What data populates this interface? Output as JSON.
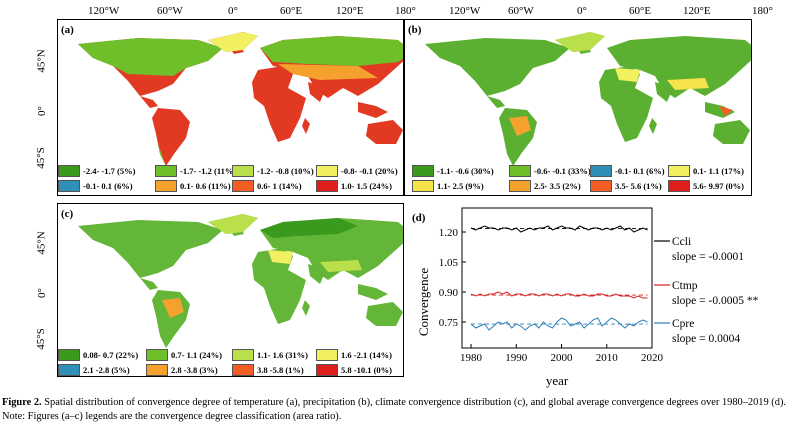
{
  "top_axis": {
    "labels": [
      "120°W",
      "60°W",
      "0°",
      "60°E",
      "120°E",
      "180°",
      "120°W",
      "60°W",
      "0°",
      "60°E",
      "120°E",
      "180°"
    ]
  },
  "lat_labels": [
    "45°N",
    "0°",
    "45°S"
  ],
  "panel_a": {
    "label": "(a)",
    "legend": [
      {
        "text": "-2.4- -1.7 (5%)",
        "color": "#3a9a1e"
      },
      {
        "text": "-1.7- -1.2 (11%)",
        "color": "#6fbf2a"
      },
      {
        "text": "-1.2- -0.8 (10%)",
        "color": "#b9df4a"
      },
      {
        "text": "-0.8- -0.1 (20%)",
        "color": "#f0f060"
      },
      {
        "text": "-0.1- 0.1 (6%)",
        "color": "#2f8fb6"
      },
      {
        "text": "0.1- 0.6 (11%)",
        "color": "#f4a22d"
      },
      {
        "text": "0.6- 1 (14%)",
        "color": "#f25e25"
      },
      {
        "text": "1.0- 1.5 (24%)",
        "color": "#e01e1e"
      }
    ]
  },
  "panel_b": {
    "label": "(b)",
    "legend": [
      {
        "text": "-1.1- -0.6 (30%)",
        "color": "#3a9a1e"
      },
      {
        "text": "-0.6- -0.1 (33%)",
        "color": "#6fbf2a"
      },
      {
        "text": "-0.1- 0.1 (6%)",
        "color": "#2f8fb6"
      },
      {
        "text": "0.1- 1.1 (17%)",
        "color": "#f0f060"
      },
      {
        "text": "1.1- 2.5 (9%)",
        "color": "#f6e24a"
      },
      {
        "text": "2.5- 3.5 (2%)",
        "color": "#f4a22d"
      },
      {
        "text": "3.5- 5.6 (1%)",
        "color": "#f25e25"
      },
      {
        "text": "5.6- 9.97 (0%)",
        "color": "#e01e1e"
      }
    ]
  },
  "panel_c": {
    "label": "(c)",
    "legend": [
      {
        "text": "0.08- 0.7 (22%)",
        "color": "#3a9a1e"
      },
      {
        "text": "0.7- 1.1 (24%)",
        "color": "#6fbf2a"
      },
      {
        "text": "1.1- 1.6 (31%)",
        "color": "#b9df4a"
      },
      {
        "text": "1.6 -2.1 (14%)",
        "color": "#f0f060"
      },
      {
        "text": "2.1 -2.8 (5%)",
        "color": "#2f8fb6"
      },
      {
        "text": "2.8 -3.8 (3%)",
        "color": "#f4a22d"
      },
      {
        "text": "3.8 -5.8 (1%)",
        "color": "#f25e25"
      },
      {
        "text": "5.8 -10.1 (0%)",
        "color": "#e01e1e"
      }
    ]
  },
  "colors": {
    "ocean": "#ffffff",
    "land_a": "#e23a22",
    "land_b": "#5cb031",
    "land_c": "#63b637"
  },
  "chart_data": {
    "type": "line",
    "panel_label": "(d)",
    "xlabel": "year",
    "ylabel": "Convergence",
    "xlim": [
      1978,
      2020
    ],
    "ylim": [
      0.62,
      1.32
    ],
    "xticks": [
      1980,
      1990,
      2000,
      2010,
      2020
    ],
    "yticks": [
      0.75,
      0.9,
      1.05,
      1.2
    ],
    "ytick_labels": [
      "0.75",
      "0.90",
      "1.05",
      "1.20"
    ],
    "x": [
      1980,
      1981,
      1982,
      1983,
      1984,
      1985,
      1986,
      1987,
      1988,
      1989,
      1990,
      1991,
      1992,
      1993,
      1994,
      1995,
      1996,
      1997,
      1998,
      1999,
      2000,
      2001,
      2002,
      2003,
      2004,
      2005,
      2006,
      2007,
      2008,
      2009,
      2010,
      2011,
      2012,
      2013,
      2014,
      2015,
      2016,
      2017,
      2018,
      2019
    ],
    "series": [
      {
        "name": "Ccli",
        "slope_text": "slope = -0.0001",
        "color": "#000000",
        "values": [
          1.22,
          1.21,
          1.22,
          1.23,
          1.22,
          1.22,
          1.21,
          1.22,
          1.22,
          1.21,
          1.22,
          1.2,
          1.21,
          1.22,
          1.21,
          1.22,
          1.22,
          1.23,
          1.21,
          1.22,
          1.23,
          1.22,
          1.22,
          1.21,
          1.23,
          1.22,
          1.21,
          1.22,
          1.22,
          1.21,
          1.22,
          1.21,
          1.22,
          1.23,
          1.21,
          1.22,
          1.2,
          1.21,
          1.22,
          1.21
        ]
      },
      {
        "name": "Ctmp",
        "slope_text": "slope = -0.0005 **",
        "color": "#d62020",
        "values": [
          0.89,
          0.88,
          0.89,
          0.88,
          0.89,
          0.89,
          0.9,
          0.89,
          0.9,
          0.88,
          0.89,
          0.89,
          0.88,
          0.89,
          0.89,
          0.88,
          0.89,
          0.89,
          0.88,
          0.89,
          0.88,
          0.89,
          0.89,
          0.88,
          0.88,
          0.89,
          0.88,
          0.88,
          0.89,
          0.89,
          0.88,
          0.88,
          0.89,
          0.88,
          0.88,
          0.88,
          0.87,
          0.88,
          0.87,
          0.87
        ]
      },
      {
        "name": "Cpre",
        "slope_text": "slope = 0.0004",
        "color": "#2a7fb8",
        "values": [
          0.74,
          0.72,
          0.73,
          0.74,
          0.71,
          0.73,
          0.75,
          0.74,
          0.75,
          0.72,
          0.74,
          0.73,
          0.71,
          0.73,
          0.74,
          0.72,
          0.75,
          0.73,
          0.72,
          0.75,
          0.77,
          0.76,
          0.73,
          0.74,
          0.75,
          0.72,
          0.74,
          0.76,
          0.77,
          0.73,
          0.75,
          0.77,
          0.76,
          0.74,
          0.72,
          0.74,
          0.73,
          0.75,
          0.76,
          0.75
        ]
      }
    ]
  },
  "caption": {
    "label": "Figure 2.",
    "text": " Spatial distribution of convergence degree of temperature (a), precipitation (b), climate convergence distribution (c), and global average convergence degrees over 1980–2019 (d). Note: Figures (a–c) legends are the convergence degree classification (area ratio)."
  }
}
